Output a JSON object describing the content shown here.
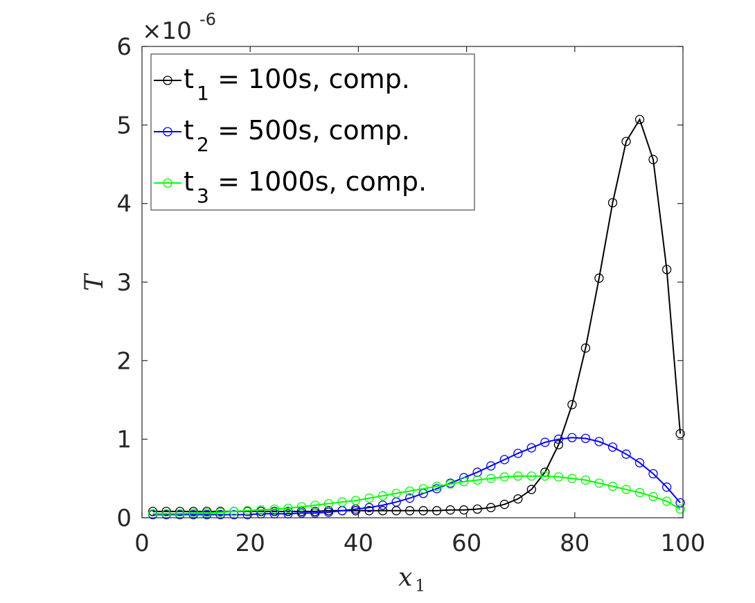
{
  "chart_data": {
    "type": "line",
    "xlabel": "x",
    "xlabel_sub": "1",
    "ylabel": "T",
    "xlim": [
      0,
      100
    ],
    "ylim": [
      0,
      6
    ],
    "y_exponent_label": "×10",
    "y_exponent": "-6",
    "x_ticks": [
      "0",
      "20",
      "40",
      "60",
      "80",
      "100"
    ],
    "y_ticks": [
      "0",
      "1",
      "2",
      "3",
      "4",
      "5",
      "6"
    ],
    "legend_position": "top-left",
    "grid": false,
    "x": [
      2.0,
      4.5,
      7.0,
      9.5,
      12.0,
      14.5,
      17.0,
      19.5,
      22.0,
      24.5,
      27.0,
      29.5,
      32.0,
      34.5,
      37.0,
      39.5,
      42.0,
      44.5,
      47.0,
      49.5,
      52.0,
      54.5,
      57.0,
      59.5,
      62.0,
      64.5,
      67.0,
      69.5,
      72.0,
      74.5,
      77.0,
      79.5,
      82.0,
      84.5,
      87.0,
      89.5,
      92.0,
      94.5,
      97.0,
      99.5
    ],
    "series": [
      {
        "name": "t₁ = 100s, comp.",
        "legend_main": "t",
        "legend_sub": "1",
        "legend_rest": " = 100s, comp.",
        "color": "#000000",
        "y": [
          0.08,
          0.08,
          0.08,
          0.08,
          0.08,
          0.08,
          0.08,
          0.08,
          0.08,
          0.08,
          0.08,
          0.08,
          0.08,
          0.09,
          0.09,
          0.09,
          0.09,
          0.09,
          0.09,
          0.09,
          0.09,
          0.09,
          0.1,
          0.1,
          0.11,
          0.13,
          0.17,
          0.24,
          0.36,
          0.58,
          0.93,
          1.44,
          2.16,
          3.05,
          4.01,
          4.79,
          5.07,
          4.56,
          3.16,
          1.07
        ]
      },
      {
        "name": "t₂ = 500s, comp.",
        "legend_main": "t",
        "legend_sub": "2",
        "legend_rest": " = 500s, comp.",
        "color": "#0000ff",
        "y": [
          0.04,
          0.04,
          0.04,
          0.04,
          0.04,
          0.04,
          0.04,
          0.04,
          0.05,
          0.05,
          0.05,
          0.06,
          0.06,
          0.07,
          0.09,
          0.11,
          0.13,
          0.16,
          0.2,
          0.25,
          0.31,
          0.37,
          0.44,
          0.51,
          0.58,
          0.66,
          0.74,
          0.82,
          0.89,
          0.96,
          1.0,
          1.02,
          1.01,
          0.97,
          0.9,
          0.81,
          0.7,
          0.56,
          0.39,
          0.19
        ]
      },
      {
        "name": "t₃ = 1000s, comp.",
        "legend_main": "t",
        "legend_sub": "3",
        "legend_rest": " = 1000s, comp.",
        "color": "#00ff00",
        "y": [
          0.05,
          0.05,
          0.05,
          0.06,
          0.06,
          0.07,
          0.08,
          0.09,
          0.1,
          0.11,
          0.12,
          0.14,
          0.16,
          0.18,
          0.2,
          0.22,
          0.25,
          0.28,
          0.31,
          0.34,
          0.37,
          0.4,
          0.43,
          0.46,
          0.48,
          0.5,
          0.52,
          0.53,
          0.53,
          0.53,
          0.52,
          0.5,
          0.48,
          0.44,
          0.4,
          0.36,
          0.32,
          0.27,
          0.21,
          0.11
        ]
      }
    ]
  }
}
